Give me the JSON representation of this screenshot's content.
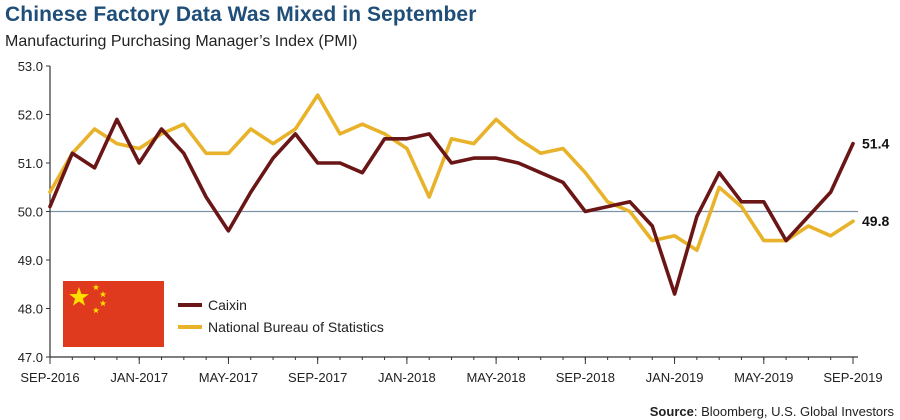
{
  "header": {
    "title": "Chinese Factory Data Was Mixed in September",
    "subtitle": "Manufacturing Purchasing Manager’s Index (PMI)"
  },
  "footer": {
    "source_label": "Source",
    "source_text": ": Bloomberg, U.S. Global Investors"
  },
  "chart_data": {
    "type": "line",
    "title": "Chinese Factory Data Was Mixed in September",
    "subtitle": "Manufacturing Purchasing Manager’s Index (PMI)",
    "xlabel": "",
    "ylabel": "",
    "ylim": [
      47.0,
      53.0
    ],
    "yticks": [
      "47.0",
      "48.0",
      "49.0",
      "50.0",
      "51.0",
      "52.0",
      "53.0"
    ],
    "x": [
      "2016-09",
      "2016-10",
      "2016-11",
      "2016-12",
      "2017-01",
      "2017-02",
      "2017-03",
      "2017-04",
      "2017-05",
      "2017-06",
      "2017-07",
      "2017-08",
      "2017-09",
      "2017-10",
      "2017-11",
      "2017-12",
      "2018-01",
      "2018-02",
      "2018-03",
      "2018-04",
      "2018-05",
      "2018-06",
      "2018-07",
      "2018-08",
      "2018-09",
      "2018-10",
      "2018-11",
      "2018-12",
      "2019-01",
      "2019-02",
      "2019-03",
      "2019-04",
      "2019-05",
      "2019-06",
      "2019-07",
      "2019-08",
      "2019-09"
    ],
    "xtick_labels": [
      {
        "index": 0,
        "label": "SEP-2016"
      },
      {
        "index": 4,
        "label": "JAN-2017"
      },
      {
        "index": 8,
        "label": "MAY-2017"
      },
      {
        "index": 12,
        "label": "SEP-2017"
      },
      {
        "index": 16,
        "label": "JAN-2018"
      },
      {
        "index": 20,
        "label": "MAY-2018"
      },
      {
        "index": 24,
        "label": "SEP-2018"
      },
      {
        "index": 28,
        "label": "JAN-2019"
      },
      {
        "index": 32,
        "label": "MAY-2019"
      },
      {
        "index": 36,
        "label": "SEP-2019"
      }
    ],
    "reference_line": 50.0,
    "grid": false,
    "legend_position": "bottom-left",
    "series": [
      {
        "name": "Caixin",
        "color": "#6b1616",
        "values": [
          50.1,
          51.2,
          50.9,
          51.9,
          51.0,
          51.7,
          51.2,
          50.3,
          49.6,
          50.4,
          51.1,
          51.6,
          51.0,
          51.0,
          50.8,
          51.5,
          51.5,
          51.6,
          51.0,
          51.1,
          51.1,
          51.0,
          50.8,
          50.6,
          50.0,
          50.1,
          50.2,
          49.7,
          48.3,
          49.9,
          50.8,
          50.2,
          50.2,
          49.4,
          49.9,
          50.4,
          51.4
        ],
        "end_label": "51.4"
      },
      {
        "name": "National Bureau of Statistics",
        "color": "#e8b32a",
        "values": [
          50.4,
          51.2,
          51.7,
          51.4,
          51.3,
          51.6,
          51.8,
          51.2,
          51.2,
          51.7,
          51.4,
          51.7,
          52.4,
          51.6,
          51.8,
          51.6,
          51.3,
          50.3,
          51.5,
          51.4,
          51.9,
          51.5,
          51.2,
          51.3,
          50.8,
          50.2,
          50.0,
          49.4,
          49.5,
          49.2,
          50.5,
          50.1,
          49.4,
          49.4,
          49.7,
          49.5,
          49.8
        ],
        "end_label": "49.8"
      }
    ],
    "colors": {
      "axis": "#333333",
      "reference_line": "#7f93a6",
      "flag_red": "#e03a1e",
      "flag_star": "#ffde00"
    }
  }
}
